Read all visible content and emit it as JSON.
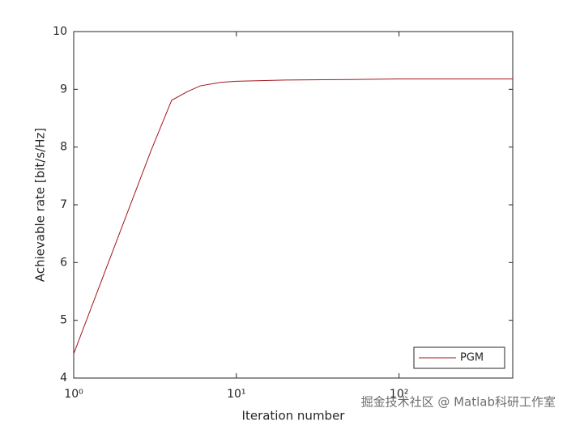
{
  "chart_data": {
    "type": "line",
    "xlabel": "Iteration number",
    "ylabel": "Achievable rate [bit/s/Hz]",
    "xscale": "log",
    "x": [
      1,
      2,
      3,
      4,
      5,
      6,
      8,
      10,
      20,
      50,
      100,
      500
    ],
    "series": [
      {
        "name": "PGM",
        "color": "#a3161a",
        "values": [
          4.42,
          6.65,
          7.95,
          8.81,
          8.96,
          9.06,
          9.12,
          9.14,
          9.16,
          9.17,
          9.18,
          9.18
        ]
      }
    ],
    "xlim": [
      1,
      500
    ],
    "xticks": [
      {
        "value": 1,
        "label": "10⁰"
      },
      {
        "value": 10,
        "label": "10¹"
      },
      {
        "value": 100,
        "label": "10²"
      }
    ],
    "ylim": [
      4,
      10
    ],
    "yticks": [
      4,
      5,
      6,
      7,
      8,
      9,
      10
    ],
    "grid": false,
    "legend": "lower right",
    "watermark": "掘金技术社区 @ Matlab科研工作室"
  }
}
